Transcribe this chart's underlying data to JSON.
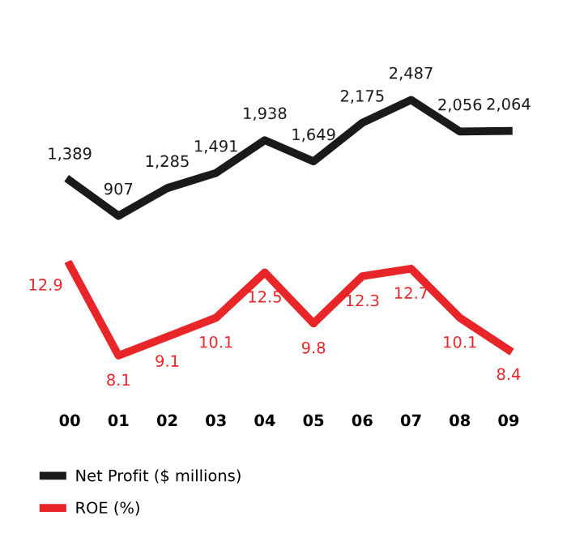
{
  "chart_data": [
    {
      "type": "line",
      "categories": [
        "00",
        "01",
        "02",
        "03",
        "04",
        "05",
        "06",
        "07",
        "08",
        "09"
      ],
      "tick_labels": false,
      "grid": false,
      "legend": "bottom left",
      "marker": "none",
      "line_style": "solid",
      "series": [
        {
          "name": "Net Profit ($ millions)",
          "color": "#1a1a1a",
          "values": [
            1389,
            907,
            1285,
            1491,
            1938,
            1649,
            2175,
            2487,
            2056,
            2064
          ],
          "value_labels": [
            "1,389",
            "907",
            "1,285",
            "1,491",
            "1,938",
            "1,649",
            "2,175",
            "2,487",
            "2,056",
            "2,064"
          ]
        }
      ]
    },
    {
      "type": "line",
      "categories": [
        "00",
        "01",
        "02",
        "03",
        "04",
        "05",
        "06",
        "07",
        "08",
        "09"
      ],
      "tick_labels": "x",
      "grid": false,
      "legend": "bottom left",
      "marker": "none",
      "line_style": "solid",
      "series": [
        {
          "name": "ROE (%)",
          "color": "#e8262a",
          "values": [
            12.9,
            8.1,
            9.1,
            10.1,
            12.5,
            9.8,
            12.3,
            12.7,
            10.1,
            8.4
          ],
          "value_labels": [
            "12.9",
            "8.1",
            "9.1",
            "10.1",
            "12.5",
            "9.8",
            "12.3",
            "12.7",
            "10.1",
            "8.4"
          ]
        }
      ]
    }
  ]
}
